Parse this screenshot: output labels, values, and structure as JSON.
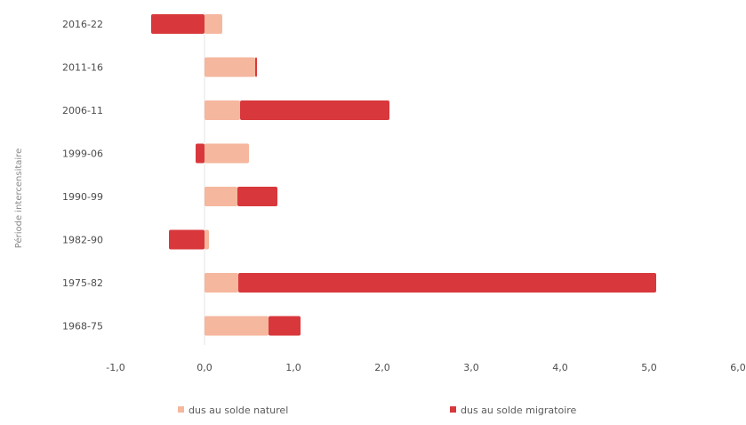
{
  "chart_data": {
    "type": "bar",
    "orientation": "horizontal",
    "stacked": true,
    "title": "",
    "ylabel": "Période intercensitaire",
    "xlabel": "",
    "categories": [
      "2016-22",
      "2011-16",
      "2006-11",
      "1999-06",
      "1990-99",
      "1982-90",
      "1975-82",
      "1968-75"
    ],
    "series": [
      {
        "name": "dus au solde naturel",
        "color": "#f5b79e",
        "values": [
          0.2,
          0.57,
          0.4,
          0.5,
          0.37,
          0.05,
          0.38,
          0.72
        ]
      },
      {
        "name": "dus au solde migratoire",
        "color": "#d8383c",
        "values": [
          -0.6,
          0.02,
          1.68,
          -0.1,
          0.45,
          -0.4,
          4.7,
          0.36
        ]
      }
    ],
    "xlim": [
      -1,
      6
    ],
    "xticks": [
      "-1,0",
      "0,0",
      "1,0",
      "2,0",
      "3,0",
      "4,0",
      "5,0",
      "6,0"
    ],
    "grid": false,
    "legend": "bottom"
  }
}
